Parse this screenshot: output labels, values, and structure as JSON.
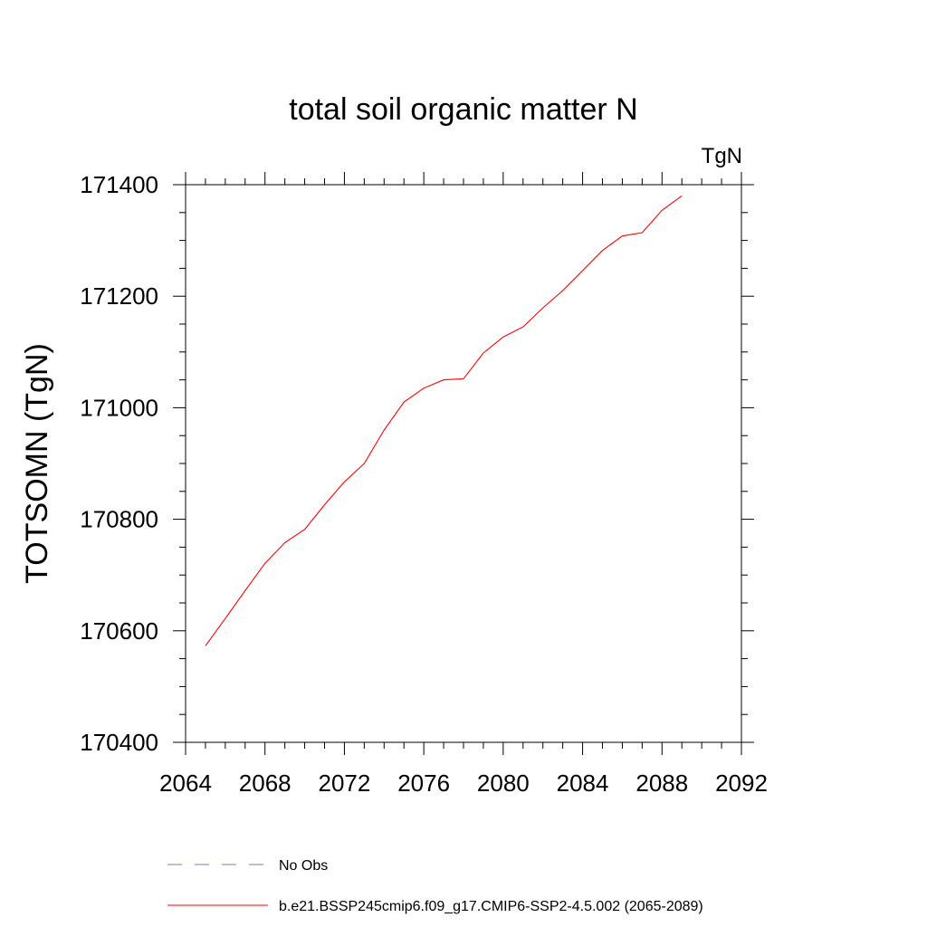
{
  "chart_data": {
    "type": "line",
    "title": "total soil organic matter N",
    "units_label": "TgN",
    "xlabel": "",
    "ylabel": "TOTSOMN  (TgN)",
    "xlim": [
      2064,
      2092
    ],
    "ylim": [
      170400,
      171400
    ],
    "x_ticks": [
      2064,
      2068,
      2072,
      2076,
      2080,
      2084,
      2088,
      2092
    ],
    "y_ticks": [
      170400,
      170600,
      170800,
      171000,
      171200,
      171400
    ],
    "x_tick_labels": [
      "2064",
      "2068",
      "2072",
      "2076",
      "2080",
      "2084",
      "2088",
      "2092"
    ],
    "y_tick_labels": [
      "170400",
      "170600",
      "170800",
      "171000",
      "171200",
      "171400"
    ],
    "grid": false,
    "series": [
      {
        "name": "b.e21.BSSP245cmip6.f09_g17.CMIP6-SSP2-4.5.002 (2065-2089)",
        "color": "#ff0000",
        "style": "solid",
        "x": [
          2065,
          2066,
          2067,
          2068,
          2069,
          2070,
          2071,
          2072,
          2073,
          2074,
          2075,
          2076,
          2077,
          2078,
          2079,
          2080,
          2081,
          2082,
          2083,
          2084,
          2085,
          2086,
          2087,
          2088,
          2089
        ],
        "values": [
          170573,
          170622,
          170672,
          170721,
          170758,
          170782,
          170826,
          170867,
          170900,
          170960,
          171010,
          171035,
          171050,
          171052,
          171098,
          171127,
          171145,
          171179,
          171210,
          171246,
          171282,
          171308,
          171314,
          171354,
          171380
        ]
      }
    ],
    "legend": [
      {
        "label": "No Obs",
        "color": "#7a7ab8",
        "style": "dashed"
      },
      {
        "label": "b.e21.BSSP245cmip6.f09_g17.CMIP6-SSP2-4.5.002 (2065-2089)",
        "color": "#ff0000",
        "style": "solid"
      }
    ],
    "legend_position": "bottom"
  }
}
